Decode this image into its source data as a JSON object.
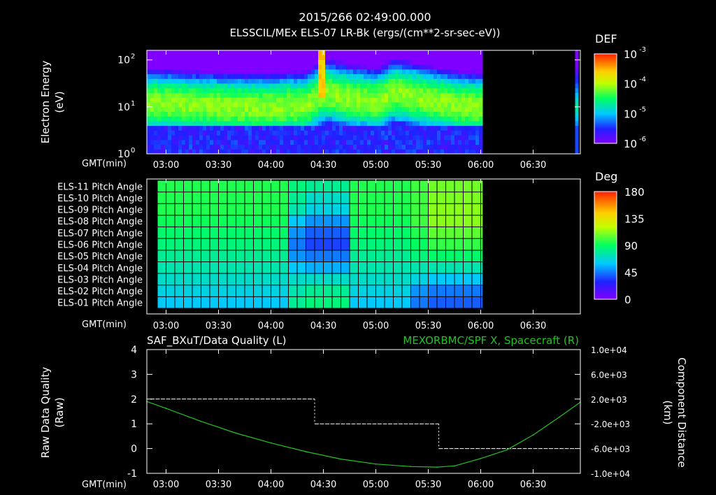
{
  "header": {
    "timestamp": "2015/266 02:49:00.000",
    "subtitle": "ELSSCIL/MEx ELS-07 LR-Bk  (ergs/(cm**2-sr-sec-eV))"
  },
  "colors": {
    "background": "#000000",
    "foreground": "#ffffff",
    "series_green": "#22c322",
    "raw_white": "#ffffff"
  },
  "time_axis": {
    "label": "GMT(min)",
    "range_min": [
      169,
      417
    ],
    "ticks": [
      {
        "min": 180,
        "label": "03:00"
      },
      {
        "min": 210,
        "label": "03:30"
      },
      {
        "min": 240,
        "label": "04:00"
      },
      {
        "min": 270,
        "label": "04:30"
      },
      {
        "min": 300,
        "label": "05:00"
      },
      {
        "min": 330,
        "label": "05:30"
      },
      {
        "min": 360,
        "label": "06:00"
      },
      {
        "min": 390,
        "label": "06:30"
      }
    ]
  },
  "chart_data": [
    {
      "type": "heatmap",
      "name": "electron-energy-spectrogram",
      "ylabel": "Electron Energy",
      "ylabel_units": "(eV)",
      "yscale": "log",
      "ylim": [
        1,
        160
      ],
      "y_ticks": [
        {
          "value": 1,
          "label": "10",
          "sup": "0"
        },
        {
          "value": 10,
          "label": "10",
          "sup": "1"
        },
        {
          "value": 100,
          "label": "10",
          "sup": "2"
        }
      ],
      "colorbar": {
        "title": "DEF",
        "scale": "log",
        "range": [
          1e-06,
          0.001
        ],
        "ticks": [
          {
            "label": "10",
            "sup": "-3"
          },
          {
            "label": "10",
            "sup": "-4"
          },
          {
            "label": "10",
            "sup": "-5"
          },
          {
            "label": "10",
            "sup": "-6"
          }
        ]
      },
      "data_coverage_min": [
        169,
        361
      ],
      "secondary_coverage_min": [
        414,
        416
      ],
      "features": {
        "peak_energy_ev": [
          [
            169,
            12
          ],
          [
            180,
            12
          ],
          [
            200,
            11
          ],
          [
            220,
            10
          ],
          [
            240,
            10
          ],
          [
            260,
            11
          ],
          [
            270,
            20
          ],
          [
            285,
            15
          ],
          [
            300,
            13
          ],
          [
            310,
            20
          ],
          [
            320,
            17
          ],
          [
            330,
            14
          ],
          [
            345,
            11
          ],
          [
            361,
            10
          ]
        ]
      }
    },
    {
      "type": "heatmap",
      "name": "pitch-angle-grid",
      "categories": [
        "ELS-11 Pitch Angle",
        "ELS-10 Pitch Angle",
        "ELS-09 Pitch Angle",
        "ELS-08 Pitch Angle",
        "ELS-07 Pitch Angle",
        "ELS-06 Pitch Angle",
        "ELS-05 Pitch Angle",
        "ELS-04 Pitch Angle",
        "ELS-03 Pitch Angle",
        "ELS-02 Pitch Angle",
        "ELS-01 Pitch Angle"
      ],
      "colorbar": {
        "title": "Deg",
        "range": [
          0,
          180
        ],
        "ticks": [
          {
            "value": 180,
            "label": "180"
          },
          {
            "value": 135,
            "label": "135"
          },
          {
            "value": 90,
            "label": "90"
          },
          {
            "value": 45,
            "label": "45"
          },
          {
            "value": 0,
            "label": "0"
          }
        ]
      },
      "data_coverage_min": [
        175,
        361
      ],
      "column_width_min": 5,
      "column_segments": [
        {
          "from": 175,
          "to": 250,
          "values": [
            95,
            95,
            95,
            92,
            88,
            85,
            80,
            75,
            70,
            65,
            60
          ]
        },
        {
          "from": 250,
          "to": 260,
          "values": [
            85,
            80,
            75,
            60,
            50,
            45,
            50,
            60,
            70,
            75,
            80
          ]
        },
        {
          "from": 260,
          "to": 285,
          "values": [
            80,
            70,
            65,
            50,
            40,
            35,
            45,
            55,
            70,
            80,
            85
          ]
        },
        {
          "from": 285,
          "to": 320,
          "values": [
            95,
            95,
            95,
            92,
            88,
            85,
            80,
            75,
            70,
            65,
            60
          ]
        },
        {
          "from": 320,
          "to": 330,
          "values": [
            100,
            100,
            100,
            100,
            95,
            90,
            85,
            75,
            65,
            50,
            45
          ]
        },
        {
          "from": 330,
          "to": 361,
          "values": [
            108,
            110,
            112,
            112,
            105,
            98,
            88,
            75,
            60,
            45,
            40
          ]
        }
      ]
    },
    {
      "type": "line",
      "name": "data-quality-and-spacecraft-distance",
      "left_title": "SAF_BXuT/Data Quality (L)",
      "right_title": "MEXORBMC/SPF X, Spacecraft (R)",
      "ylabel_left": "Raw Data Quality",
      "ylabel_left_units": "(Raw)",
      "ylabel_right": "Component Distance",
      "ylabel_right_units": "(km)",
      "ylim_left": [
        -1,
        4
      ],
      "ylim_right": [
        -10000,
        10000
      ],
      "y_ticks_left": [
        4,
        3,
        2,
        1,
        0,
        -1
      ],
      "y_ticks_right": [
        {
          "value": 10000,
          "label": "1.0e+04"
        },
        {
          "value": 6000,
          "label": "6.0e+03"
        },
        {
          "value": 2000,
          "label": "2.0e+03"
        },
        {
          "value": -2000,
          "label": "-2.0e+03"
        },
        {
          "value": -6000,
          "label": "-6.0e+03"
        },
        {
          "value": -10000,
          "label": "-1.0e+04"
        }
      ],
      "series": [
        {
          "name": "Data Quality (L)",
          "axis": "left",
          "style": "segments",
          "segments": [
            {
              "from": 171,
              "to": 265,
              "value": 2
            },
            {
              "from": 265,
              "to": 336,
              "value": 1
            },
            {
              "from": 336,
              "to": 414,
              "value": 0
            }
          ]
        },
        {
          "name": "SPF X (R)",
          "axis": "right",
          "style": "line",
          "x": [
            169,
            180,
            200,
            220,
            240,
            260,
            280,
            300,
            320,
            335,
            345,
            360,
            375,
            390,
            405,
            417
          ],
          "y": [
            1600,
            500,
            -1600,
            -3500,
            -5100,
            -6500,
            -7700,
            -8500,
            -8900,
            -9000,
            -8800,
            -7600,
            -6200,
            -3800,
            -900,
            1500
          ]
        }
      ]
    }
  ]
}
